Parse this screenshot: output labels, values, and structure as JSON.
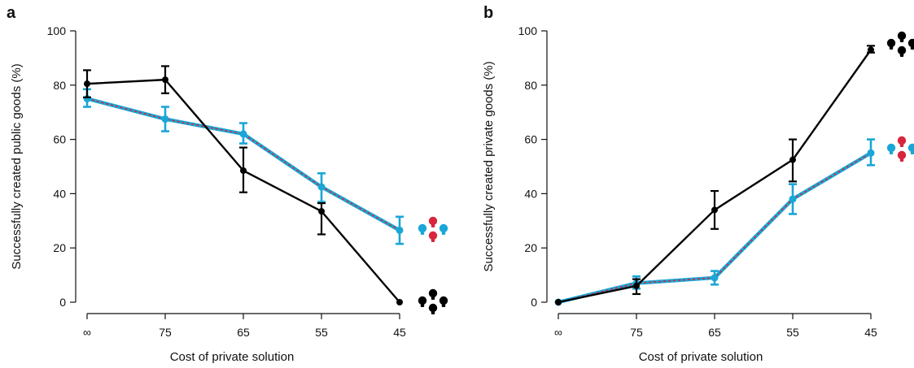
{
  "chart_data": [
    {
      "type": "line",
      "panel_label": "a",
      "xlabel": "Cost of private solution",
      "ylabel": "Successfully created public goods (%)",
      "categories": [
        "∞",
        "75",
        "65",
        "55",
        "45"
      ],
      "y_ticks": [
        "0",
        "20",
        "40",
        "60",
        "80",
        "100"
      ],
      "ylim": [
        0,
        100
      ],
      "grid": false,
      "series": [
        {
          "color": "#000000",
          "values": [
            80.5,
            82,
            48.5,
            33.5,
            0
          ],
          "err_low": [
            75.5,
            77,
            40.5,
            25,
            0
          ],
          "err_high": [
            85.5,
            87,
            57,
            36.5,
            0
          ]
        },
        {
          "color": "#1aa6d6",
          "dash_color": "#d7263d",
          "values": [
            75,
            67.5,
            62,
            42.5,
            26.5
          ],
          "err_low": [
            72,
            63,
            58.5,
            37,
            21.5
          ],
          "err_high": [
            78.5,
            72,
            66,
            47.5,
            31.5
          ]
        }
      ],
      "icons": [
        {
          "name": "black-bulb-group-icon",
          "colors": [
            "#000000",
            "#000000",
            "#000000",
            "#000000"
          ]
        },
        {
          "name": "mixed-bulb-group-icon",
          "colors": [
            "#1aa6d6",
            "#d7263d",
            "#1aa6d6",
            "#d7263d"
          ]
        }
      ]
    },
    {
      "type": "line",
      "panel_label": "b",
      "xlabel": "Cost of private solution",
      "ylabel": "Successfully created private goods (%)",
      "categories": [
        "∞",
        "75",
        "65",
        "55",
        "45"
      ],
      "y_ticks": [
        "0",
        "20",
        "40",
        "60",
        "80",
        "100"
      ],
      "ylim": [
        0,
        100
      ],
      "grid": false,
      "series": [
        {
          "color": "#000000",
          "values": [
            0,
            6,
            34,
            52.5,
            93
          ],
          "err_low": [
            0,
            3,
            27,
            44.5,
            92
          ],
          "err_high": [
            0,
            8.5,
            41,
            60,
            94.5
          ]
        },
        {
          "color": "#1aa6d6",
          "dash_color": "#d7263d",
          "values": [
            0,
            7,
            9,
            38,
            55
          ],
          "err_low": [
            0,
            5,
            6.5,
            32.5,
            50.5
          ],
          "err_high": [
            0,
            9.5,
            11.5,
            43.5,
            60
          ]
        }
      ],
      "icons": [
        {
          "name": "black-bulb-group-icon",
          "colors": [
            "#000000",
            "#000000",
            "#000000",
            "#000000"
          ]
        },
        {
          "name": "mixed-bulb-group-icon",
          "colors": [
            "#1aa6d6",
            "#d7263d",
            "#1aa6d6",
            "#d7263d"
          ]
        }
      ]
    }
  ]
}
